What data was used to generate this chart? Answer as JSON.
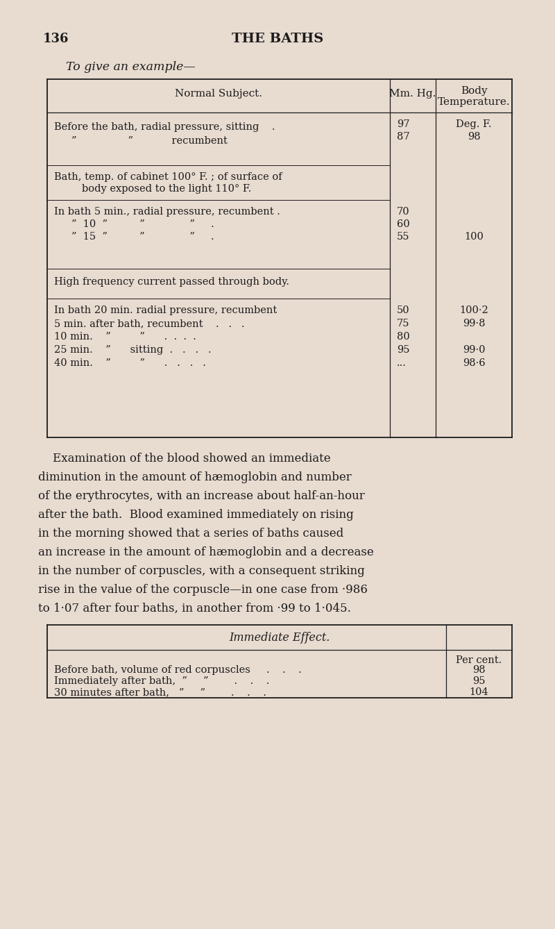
{
  "bg_color": "#e8dbd0",
  "text_color": "#1c1c1c",
  "page_num": "136",
  "page_title": "THE BATHS",
  "subtitle": "To give an example—",
  "para_line1": "    Examination of the blood showed an immediate",
  "para_line2": "diminution in the amount of hæmoglobin and number",
  "para_line3": "of the erythrocytes, with an increase about half-an-hour",
  "para_line4": "after the bath.  Blood examined immediately on rising",
  "para_line5": "in the morning showed that a series of baths caused",
  "para_line6": "an increase in the amount of hæmoglobin and a decrease",
  "para_line7": "in the number of corpuscles, with a consequent striking",
  "para_line8": "rise in the value of the corpuscle—in one case from ·986",
  "para_line9": "to 1·07 after four baths, in another from ·99 to 1·045.",
  "table2_title": "Immediate Effect.",
  "t2r1c1": "Before bath, volume of red corpuscles     .    .    .",
  "t2r1c2": "98",
  "t2r2c1": "Immediately after bath,  ”     ”        .    .    .",
  "t2r2c2": "95",
  "t2r3c1": "30 minutes after bath,   ”     ”        .    .    .",
  "t2r3c2": "104",
  "percol_label": "Per cent."
}
